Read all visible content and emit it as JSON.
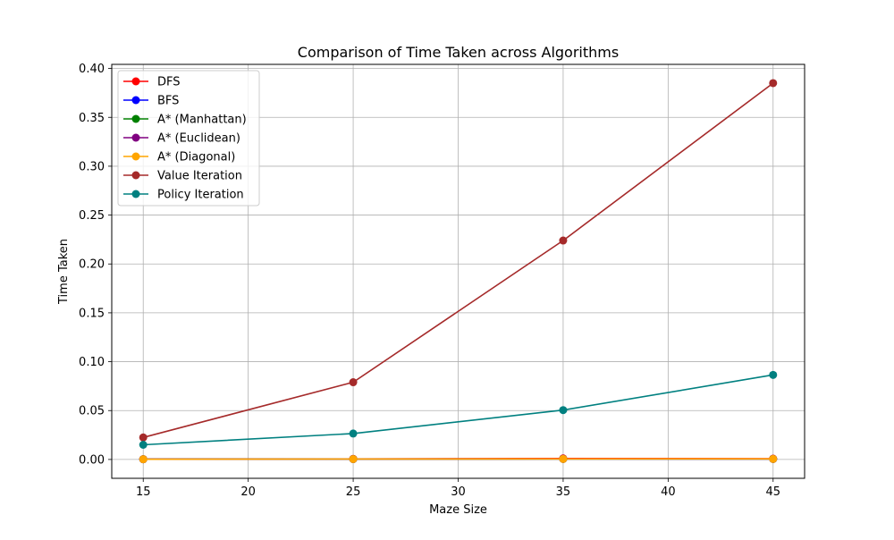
{
  "chart_data": {
    "type": "line",
    "title": "Comparison of Time Taken across Algorithms",
    "xlabel": "Maze Size",
    "ylabel": "Time Taken",
    "x": [
      15,
      25,
      35,
      45
    ],
    "xlim": [
      13.5,
      46.5
    ],
    "ylim": [
      -0.0193,
      0.4042
    ],
    "xticks": [
      15,
      20,
      25,
      30,
      35,
      40,
      45
    ],
    "yticks": [
      0.0,
      0.05,
      0.1,
      0.15,
      0.2,
      0.25,
      0.3,
      0.35,
      0.4
    ],
    "xtick_labels": [
      "15",
      "20",
      "25",
      "30",
      "35",
      "40",
      "45"
    ],
    "ytick_labels": [
      "0.00",
      "0.05",
      "0.10",
      "0.15",
      "0.20",
      "0.25",
      "0.30",
      "0.35",
      "0.40"
    ],
    "grid": true,
    "legend_position": "top-left",
    "series": [
      {
        "name": "DFS",
        "color": "#ff0000",
        "values": [
          0.0003,
          0.0006,
          0.001,
          0.0008
        ]
      },
      {
        "name": "BFS",
        "color": "#0000ff",
        "values": [
          0.0002,
          0.0004,
          0.0006,
          0.0005
        ]
      },
      {
        "name": "A* (Manhattan)",
        "color": "#008000",
        "values": [
          0.0002,
          0.0004,
          0.0005,
          0.0005
        ]
      },
      {
        "name": "A* (Euclidean)",
        "color": "#800080",
        "values": [
          0.0002,
          0.0004,
          0.0005,
          0.0005
        ]
      },
      {
        "name": "A* (Diagonal)",
        "color": "#ffa500",
        "values": [
          0.0002,
          0.0004,
          0.0005,
          0.0005
        ]
      },
      {
        "name": "Value Iteration",
        "color": "#a52a2a",
        "values": [
          0.0225,
          0.079,
          0.224,
          0.385
        ]
      },
      {
        "name": "Policy Iteration",
        "color": "#008080",
        "values": [
          0.015,
          0.0265,
          0.0505,
          0.0865
        ]
      }
    ]
  }
}
